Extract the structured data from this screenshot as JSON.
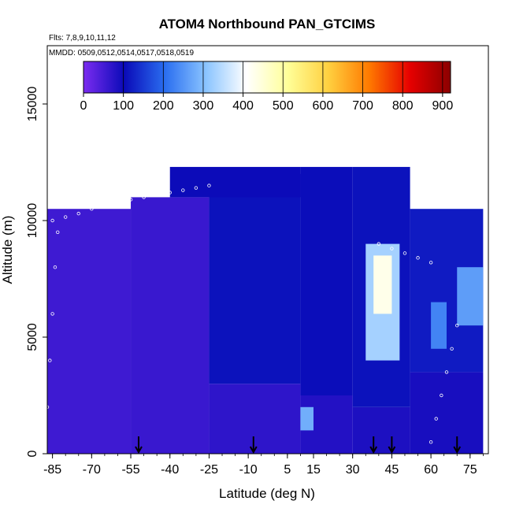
{
  "chart_data": {
    "type": "heatmap",
    "title": "ATOM4 Northbound PAN_GTCIMS",
    "subtitle_flights": "Flts: 7,8,9,10,11,12",
    "subtitle_dates": "MMDD: 0509,0512,0514,0517,0518,0519",
    "xlabel": "Latitude (deg N)",
    "ylabel": "Altitude (m)",
    "xlim": [
      -87,
      82
    ],
    "ylim": [
      0,
      17500
    ],
    "x_ticks": [
      -85,
      -70,
      -55,
      -40,
      -25,
      -10,
      5,
      15,
      30,
      45,
      60,
      75
    ],
    "x_tick_labels": [
      "-85",
      "-70",
      "-55",
      "-40",
      "-25",
      "-10",
      "5",
      "15",
      "30",
      "45",
      "60",
      "75"
    ],
    "y_ticks": [
      0,
      5000,
      10000,
      15000
    ],
    "y_tick_labels": [
      "0",
      "5000",
      "10000",
      "15000"
    ],
    "colorbar": {
      "min": 0,
      "max": 920,
      "ticks": [
        0,
        100,
        200,
        300,
        400,
        500,
        600,
        700,
        800,
        900
      ],
      "tick_labels": [
        "0",
        "100",
        "200",
        "300",
        "400",
        "500",
        "600",
        "700",
        "800",
        "900"
      ],
      "colors": [
        "#7b2cf0",
        "#0a0ab8",
        "#2a6ef0",
        "#8ac4ff",
        "#ffffff",
        "#ffff99",
        "#ffd040",
        "#ff7a00",
        "#e60000",
        "#8b0000"
      ]
    },
    "grid": false,
    "cells": [
      {
        "x0": -87,
        "x1": -55,
        "y0": 0,
        "y1": 10500,
        "v": 55
      },
      {
        "x0": -55,
        "x1": -25,
        "y0": 0,
        "y1": 11000,
        "v": 60
      },
      {
        "x0": -25,
        "x1": 10,
        "y0": 0,
        "y1": 3000,
        "v": 70
      },
      {
        "x0": -25,
        "x1": 10,
        "y0": 3000,
        "y1": 12000,
        "v": 110
      },
      {
        "x0": -40,
        "x1": 10,
        "y0": 11000,
        "y1": 12300,
        "v": 100
      },
      {
        "x0": 10,
        "x1": 30,
        "y0": 0,
        "y1": 2500,
        "v": 80
      },
      {
        "x0": 10,
        "x1": 30,
        "y0": 2500,
        "y1": 12300,
        "v": 105
      },
      {
        "x0": 30,
        "x1": 52,
        "y0": 0,
        "y1": 2000,
        "v": 85
      },
      {
        "x0": 30,
        "x1": 52,
        "y0": 2000,
        "y1": 12300,
        "v": 110
      },
      {
        "x0": 52,
        "x1": 80,
        "y0": 0,
        "y1": 3500,
        "v": 90
      },
      {
        "x0": 52,
        "x1": 80,
        "y0": 3500,
        "y1": 10500,
        "v": 120
      },
      {
        "x0": 35,
        "x1": 48,
        "y0": 4000,
        "y1": 9000,
        "v": 330
      },
      {
        "x0": 38,
        "x1": 45,
        "y0": 6000,
        "y1": 8500,
        "v": 430
      },
      {
        "x0": 10,
        "x1": 15,
        "y0": 1000,
        "y1": 2000,
        "v": 280
      },
      {
        "x0": 70,
        "x1": 80,
        "y0": 5500,
        "y1": 8000,
        "v": 260
      },
      {
        "x0": 60,
        "x1": 66,
        "y0": 4500,
        "y1": 6500,
        "v": 230
      }
    ],
    "arrows_x": [
      -52,
      -8,
      38,
      45,
      70
    ],
    "sample_tracks": [
      {
        "x": [
          -85,
          -80,
          -75,
          -70,
          -65,
          -60,
          -55
        ],
        "y": [
          10000,
          10150,
          10300,
          10500,
          10700,
          10800,
          10900
        ]
      },
      {
        "x": [
          -50,
          -45,
          -40,
          -35,
          -30,
          -25
        ],
        "y": [
          11000,
          11100,
          11200,
          11300,
          11400,
          11500
        ]
      },
      {
        "x": [
          40,
          45,
          50,
          55,
          60
        ],
        "y": [
          9000,
          8800,
          8600,
          8400,
          8200
        ]
      },
      {
        "x": [
          -87,
          -86,
          -85,
          -84,
          -83
        ],
        "y": [
          2000,
          4000,
          6000,
          8000,
          9500
        ]
      },
      {
        "x": [
          60,
          62,
          64,
          66,
          68,
          70
        ],
        "y": [
          500,
          1500,
          2500,
          3500,
          4500,
          5500
        ]
      }
    ]
  }
}
